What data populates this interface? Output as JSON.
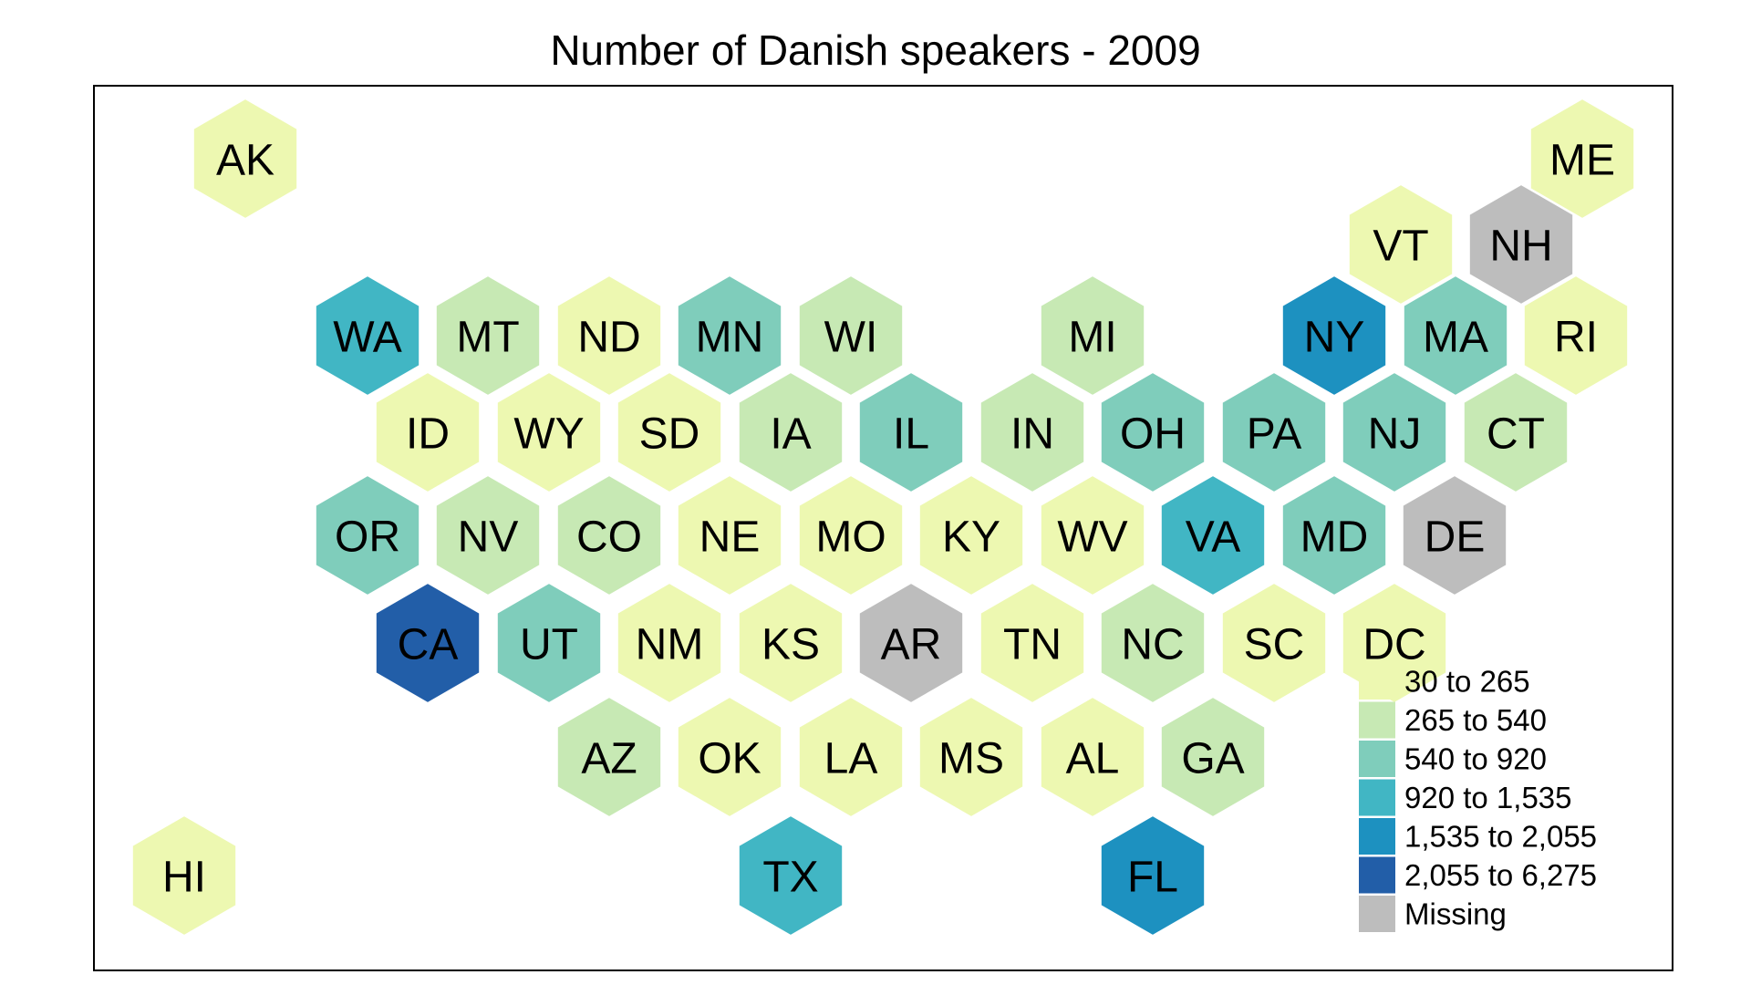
{
  "title": "Number of Danish speakers - 2009",
  "legend": [
    {
      "label": "30 to 265",
      "color": "#edf8b1"
    },
    {
      "label": "265 to 540",
      "color": "#c7e9b4"
    },
    {
      "label": "540 to 920",
      "color": "#7fcdbb"
    },
    {
      "label": "920 to 1,535",
      "color": "#41b6c4"
    },
    {
      "label": "1,535 to 2,055",
      "color": "#1d91c0"
    },
    {
      "label": "2,055 to 6,275",
      "color": "#225ea8"
    },
    {
      "label": "Missing",
      "color": "#bdbdbd"
    }
  ],
  "states": [
    {
      "abbr": "AK",
      "bin": 0
    },
    {
      "abbr": "ME",
      "bin": 0
    },
    {
      "abbr": "VT",
      "bin": 0
    },
    {
      "abbr": "NH",
      "bin": 6
    },
    {
      "abbr": "WA",
      "bin": 3
    },
    {
      "abbr": "MT",
      "bin": 1
    },
    {
      "abbr": "ND",
      "bin": 0
    },
    {
      "abbr": "MN",
      "bin": 2
    },
    {
      "abbr": "WI",
      "bin": 1
    },
    {
      "abbr": "MI",
      "bin": 1
    },
    {
      "abbr": "NY",
      "bin": 4
    },
    {
      "abbr": "MA",
      "bin": 2
    },
    {
      "abbr": "RI",
      "bin": 0
    },
    {
      "abbr": "ID",
      "bin": 0
    },
    {
      "abbr": "WY",
      "bin": 0
    },
    {
      "abbr": "SD",
      "bin": 0
    },
    {
      "abbr": "IA",
      "bin": 1
    },
    {
      "abbr": "IL",
      "bin": 2
    },
    {
      "abbr": "IN",
      "bin": 1
    },
    {
      "abbr": "OH",
      "bin": 2
    },
    {
      "abbr": "PA",
      "bin": 2
    },
    {
      "abbr": "NJ",
      "bin": 2
    },
    {
      "abbr": "CT",
      "bin": 1
    },
    {
      "abbr": "OR",
      "bin": 2
    },
    {
      "abbr": "NV",
      "bin": 1
    },
    {
      "abbr": "CO",
      "bin": 1
    },
    {
      "abbr": "NE",
      "bin": 0
    },
    {
      "abbr": "MO",
      "bin": 0
    },
    {
      "abbr": "KY",
      "bin": 0
    },
    {
      "abbr": "WV",
      "bin": 0
    },
    {
      "abbr": "VA",
      "bin": 3
    },
    {
      "abbr": "MD",
      "bin": 2
    },
    {
      "abbr": "DE",
      "bin": 6
    },
    {
      "abbr": "CA",
      "bin": 5
    },
    {
      "abbr": "UT",
      "bin": 2
    },
    {
      "abbr": "NM",
      "bin": 0
    },
    {
      "abbr": "KS",
      "bin": 0
    },
    {
      "abbr": "AR",
      "bin": 6
    },
    {
      "abbr": "TN",
      "bin": 0
    },
    {
      "abbr": "NC",
      "bin": 1
    },
    {
      "abbr": "SC",
      "bin": 0
    },
    {
      "abbr": "DC",
      "bin": 0
    },
    {
      "abbr": "AZ",
      "bin": 1
    },
    {
      "abbr": "OK",
      "bin": 0
    },
    {
      "abbr": "LA",
      "bin": 0
    },
    {
      "abbr": "MS",
      "bin": 0
    },
    {
      "abbr": "AL",
      "bin": 0
    },
    {
      "abbr": "GA",
      "bin": 1
    },
    {
      "abbr": "HI",
      "bin": 0
    },
    {
      "abbr": "TX",
      "bin": 3
    },
    {
      "abbr": "FL",
      "bin": 4
    }
  ]
}
